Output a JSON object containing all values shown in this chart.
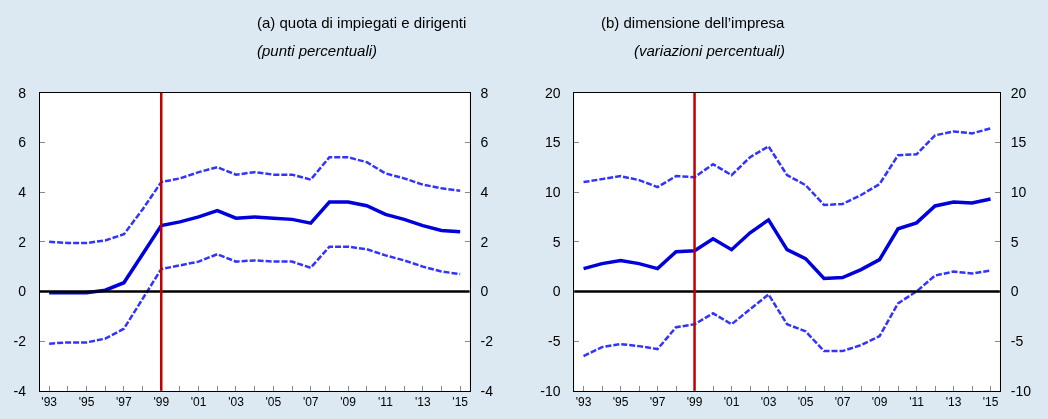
{
  "chart_data": [
    {
      "type": "line",
      "title": "(a) quota di impiegati e dirigenti",
      "subtitle": "(punti percentuali)",
      "x": [
        1993,
        1994,
        1995,
        1996,
        1997,
        1998,
        1999,
        2000,
        2001,
        2002,
        2003,
        2004,
        2005,
        2006,
        2007,
        2008,
        2009,
        2010,
        2011,
        2012,
        2013,
        2014,
        2015
      ],
      "series": [
        {
          "color": "#0000dd",
          "line_style": "solid",
          "values": [
            -0.05,
            -0.05,
            -0.05,
            0.05,
            0.35,
            1.5,
            2.65,
            2.8,
            3.0,
            3.25,
            2.95,
            3.0,
            2.95,
            2.9,
            2.75,
            3.6,
            3.6,
            3.45,
            3.1,
            2.9,
            2.65,
            2.45,
            2.4
          ]
        },
        {
          "color": "#3333ff",
          "line_style": "dashed",
          "values": [
            2.0,
            1.95,
            1.95,
            2.05,
            2.3,
            3.3,
            4.4,
            4.55,
            4.8,
            5.0,
            4.7,
            4.8,
            4.7,
            4.7,
            4.5,
            5.4,
            5.4,
            5.2,
            4.75,
            4.55,
            4.3,
            4.15,
            4.05
          ]
        },
        {
          "color": "#3333ff",
          "line_style": "dashed",
          "values": [
            -2.1,
            -2.05,
            -2.05,
            -1.9,
            -1.5,
            -0.3,
            0.9,
            1.05,
            1.2,
            1.5,
            1.2,
            1.25,
            1.2,
            1.2,
            0.95,
            1.8,
            1.8,
            1.7,
            1.45,
            1.25,
            1.0,
            0.8,
            0.7
          ]
        }
      ],
      "xlim": [
        1992.5,
        2015.5
      ],
      "xticks": [
        {
          "value": 1993,
          "label": "'93"
        },
        {
          "value": 1994,
          "label": null
        },
        {
          "value": 1995,
          "label": "'95"
        },
        {
          "value": 1996,
          "label": null
        },
        {
          "value": 1997,
          "label": "'97"
        },
        {
          "value": 1998,
          "label": null
        },
        {
          "value": 1999,
          "label": "'99"
        },
        {
          "value": 2000,
          "label": null
        },
        {
          "value": 2001,
          "label": "'01"
        },
        {
          "value": 2002,
          "label": null
        },
        {
          "value": 2003,
          "label": "'03"
        },
        {
          "value": 2004,
          "label": null
        },
        {
          "value": 2005,
          "label": "'05"
        },
        {
          "value": 2006,
          "label": null
        },
        {
          "value": 2007,
          "label": "'07"
        },
        {
          "value": 2008,
          "label": null
        },
        {
          "value": 2009,
          "label": "'09"
        },
        {
          "value": 2010,
          "label": null
        },
        {
          "value": 2011,
          "label": "'11"
        },
        {
          "value": 2012,
          "label": null
        },
        {
          "value": 2013,
          "label": "'13"
        },
        {
          "value": 2014,
          "label": null
        },
        {
          "value": 2015,
          "label": "'15"
        }
      ],
      "ylim": [
        -4,
        8
      ],
      "yticks": [
        -4,
        -2,
        0,
        2,
        4,
        6,
        8
      ],
      "y2lim": [
        -4,
        8
      ],
      "y2ticks": [
        -4,
        -2,
        0,
        2,
        4,
        6,
        8
      ],
      "ref_lines": [
        {
          "axis": "y",
          "value": 0,
          "color": "#000000"
        },
        {
          "axis": "x",
          "value": 1999,
          "color": "#c00000"
        }
      ],
      "grid": false
    },
    {
      "type": "line",
      "title": "(b) dimensione dell’impresa",
      "subtitle": "(variazioni percentuali)",
      "x": [
        1993,
        1994,
        1995,
        1996,
        1997,
        1998,
        1999,
        2000,
        2001,
        2002,
        2003,
        2004,
        2005,
        2006,
        2007,
        2008,
        2009,
        2010,
        2011,
        2012,
        2013,
        2014,
        2015
      ],
      "series": [
        {
          "color": "#0000dd",
          "line_style": "solid",
          "values": [
            2.3,
            2.8,
            3.1,
            2.8,
            2.3,
            4.0,
            4.1,
            5.3,
            4.2,
            5.9,
            7.2,
            4.2,
            3.3,
            1.3,
            1.4,
            2.2,
            3.2,
            6.3,
            6.9,
            8.6,
            9.0,
            8.9,
            9.3
          ]
        },
        {
          "color": "#3333ff",
          "line_style": "dashed",
          "values": [
            11.0,
            11.3,
            11.6,
            11.2,
            10.5,
            11.6,
            11.5,
            12.8,
            11.7,
            13.5,
            14.6,
            11.7,
            10.7,
            8.7,
            8.8,
            9.7,
            10.8,
            13.7,
            13.8,
            15.7,
            16.1,
            15.9,
            16.4
          ]
        },
        {
          "color": "#3333ff",
          "line_style": "dashed",
          "values": [
            -6.5,
            -5.6,
            -5.3,
            -5.5,
            -5.8,
            -3.6,
            -3.3,
            -2.2,
            -3.3,
            -1.8,
            -0.3,
            -3.3,
            -4.0,
            -6.0,
            -6.0,
            -5.4,
            -4.5,
            -1.2,
            0.0,
            1.6,
            2.0,
            1.8,
            2.1
          ]
        }
      ],
      "xlim": [
        1992.5,
        2015.5
      ],
      "xticks": [
        {
          "value": 1993,
          "label": "'93"
        },
        {
          "value": 1994,
          "label": null
        },
        {
          "value": 1995,
          "label": "'95"
        },
        {
          "value": 1996,
          "label": null
        },
        {
          "value": 1997,
          "label": "'97"
        },
        {
          "value": 1998,
          "label": null
        },
        {
          "value": 1999,
          "label": "'99"
        },
        {
          "value": 2000,
          "label": null
        },
        {
          "value": 2001,
          "label": "'01"
        },
        {
          "value": 2002,
          "label": null
        },
        {
          "value": 2003,
          "label": "'03"
        },
        {
          "value": 2004,
          "label": null
        },
        {
          "value": 2005,
          "label": "'05"
        },
        {
          "value": 2006,
          "label": null
        },
        {
          "value": 2007,
          "label": "'07"
        },
        {
          "value": 2008,
          "label": null
        },
        {
          "value": 2009,
          "label": "'09"
        },
        {
          "value": 2010,
          "label": null
        },
        {
          "value": 2011,
          "label": "'11"
        },
        {
          "value": 2012,
          "label": null
        },
        {
          "value": 2013,
          "label": "'13"
        },
        {
          "value": 2014,
          "label": null
        },
        {
          "value": 2015,
          "label": "'15"
        }
      ],
      "ylim": [
        -10,
        20
      ],
      "yticks": [
        -10,
        -5,
        0,
        5,
        10,
        15,
        20
      ],
      "y2lim": [
        -10,
        20
      ],
      "y2ticks": [
        -10,
        -5,
        0,
        5,
        10,
        15,
        20
      ],
      "ref_lines": [
        {
          "axis": "y",
          "value": 0,
          "color": "#000000"
        },
        {
          "axis": "x",
          "value": 1999,
          "color": "#c00000"
        }
      ],
      "grid": false
    }
  ]
}
